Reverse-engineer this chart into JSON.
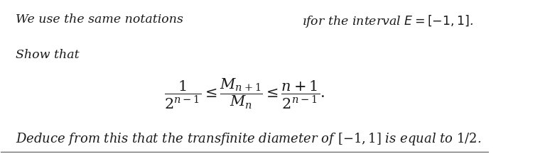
{
  "figsize": [
    7.67,
    2.27
  ],
  "dpi": 100,
  "background": "white",
  "line1_left": "We use the same notations",
  "line1_right": "ıfor the interval $E = [-1, 1]$.",
  "line2": "Show that",
  "formula": "$\\dfrac{1}{2^{n-1}} \\leq \\dfrac{M_{n+1}}{M_n} \\leq \\dfrac{n+1}{2^{n-1}}.$",
  "line3": "Deduce from this that the transfinite diameter of $[-1, 1]$ is equal to $1/2$.",
  "font_size_text": 12.5,
  "font_size_formula": 15,
  "font_size_deduce": 13,
  "text_color": "#1a1a1a",
  "line_color": "#555555",
  "line_lw": 0.8
}
